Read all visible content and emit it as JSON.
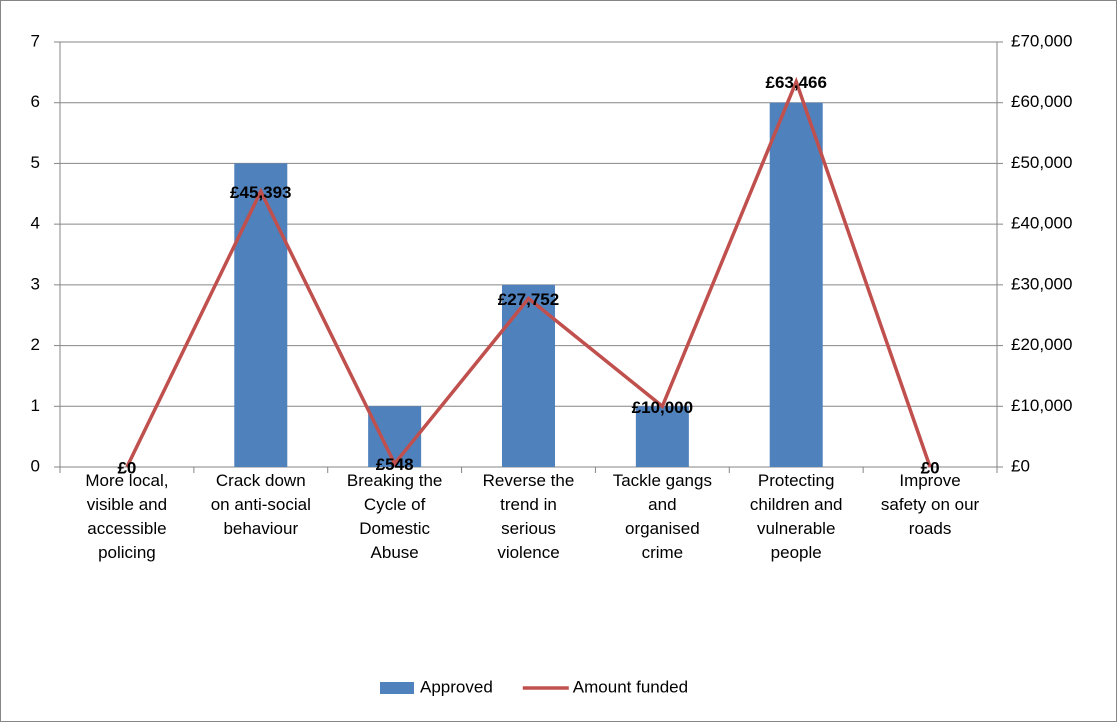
{
  "chart_data": {
    "type": "bar",
    "categories": [
      "More local, visible and accessible policing",
      "Crack down on anti-social behaviour",
      "Breaking the Cycle of Domestic Abuse",
      "Reverse the trend in serious violence",
      "Tackle gangs and organised crime",
      "Protecting children and vulnerable people",
      "Improve safety on our roads"
    ],
    "series": [
      {
        "name": "Approved",
        "type": "bar",
        "color": "#4f81bd",
        "values": [
          0,
          5,
          1,
          3,
          1,
          6,
          0
        ]
      },
      {
        "name": "Amount funded",
        "type": "line",
        "axis": "y2",
        "color": "#c0504d",
        "values": [
          0,
          45393,
          548,
          27752,
          10000,
          63466,
          0
        ],
        "value_labels": [
          "£0",
          "£45,393",
          "£548",
          "£27,752",
          "£10,000",
          "£63,466",
          "£0"
        ]
      }
    ],
    "ylim": [
      0,
      7
    ],
    "yticks": [
      0,
      1,
      2,
      3,
      4,
      5,
      6,
      7
    ],
    "y2lim": [
      0,
      70000
    ],
    "y2ticks": [
      {
        "value": 0,
        "label": "£0"
      },
      {
        "value": 10000,
        "label": "£10,000"
      },
      {
        "value": 20000,
        "label": "£20,000"
      },
      {
        "value": 30000,
        "label": "£30,000"
      },
      {
        "value": 40000,
        "label": "£40,000"
      },
      {
        "value": 50000,
        "label": "£50,000"
      },
      {
        "value": 60000,
        "label": "£60,000"
      },
      {
        "value": 70000,
        "label": "£70,000"
      }
    ],
    "grid": true,
    "legend": "bottom"
  }
}
